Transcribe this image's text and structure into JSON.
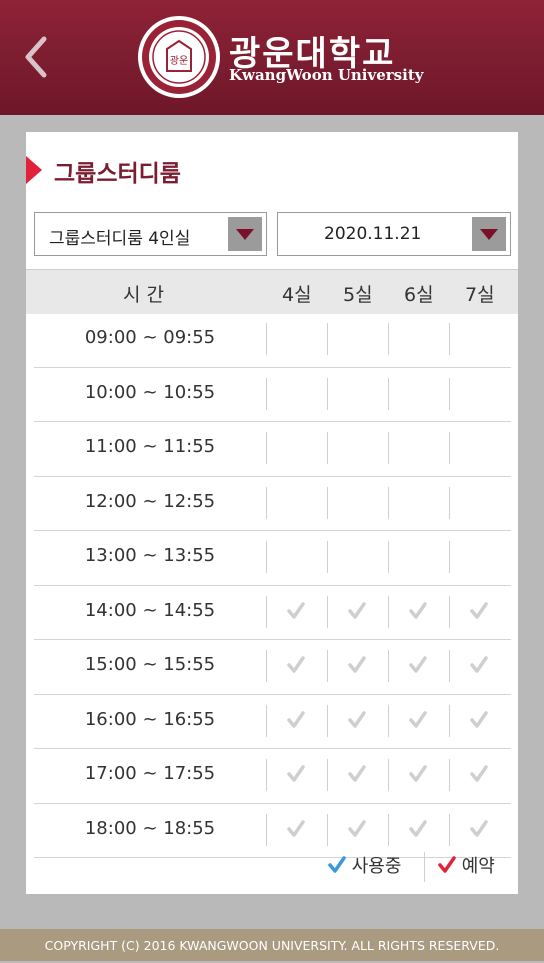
{
  "header": {
    "brand_korean": "광운대학교",
    "brand_english": "KwangWoon University",
    "logo_inner_text": "광운",
    "icons": {
      "back": "chevron-left-icon",
      "logo": "university-seal-icon"
    }
  },
  "page": {
    "title": "그룹스터디룸"
  },
  "filters": {
    "room_type": "그룹스터디룸 4인실",
    "date": "2020.11.21"
  },
  "table": {
    "time_header": "시 간",
    "room_headers": [
      "4실",
      "5실",
      "6실",
      "7실"
    ],
    "rows": [
      {
        "time": "09:00 ~ 09:55",
        "status": [
          "",
          "",
          "",
          ""
        ]
      },
      {
        "time": "10:00 ~ 10:55",
        "status": [
          "",
          "",
          "",
          ""
        ]
      },
      {
        "time": "11:00 ~ 11:55",
        "status": [
          "",
          "",
          "",
          ""
        ]
      },
      {
        "time": "12:00 ~ 12:55",
        "status": [
          "",
          "",
          "",
          ""
        ]
      },
      {
        "time": "13:00 ~ 13:55",
        "status": [
          "",
          "",
          "",
          ""
        ]
      },
      {
        "time": "14:00 ~ 14:55",
        "status": [
          "disabled",
          "disabled",
          "disabled",
          "disabled"
        ]
      },
      {
        "time": "15:00 ~ 15:55",
        "status": [
          "disabled",
          "disabled",
          "disabled",
          "disabled"
        ]
      },
      {
        "time": "16:00 ~ 16:55",
        "status": [
          "disabled",
          "disabled",
          "disabled",
          "disabled"
        ]
      },
      {
        "time": "17:00 ~ 17:55",
        "status": [
          "disabled",
          "disabled",
          "disabled",
          "disabled"
        ]
      },
      {
        "time": "18:00 ~ 18:55",
        "status": [
          "disabled",
          "disabled",
          "disabled",
          "disabled"
        ]
      }
    ]
  },
  "legend": {
    "in_use_label": "사용중",
    "reserved_label": "예약"
  },
  "colors": {
    "header_maroon": "#7a1c2f",
    "title_red": "#7b1c30",
    "marker_red": "#e0233a",
    "in_use_blue": "#3a9ad9",
    "reserved_red": "#e0233a",
    "disabled_check": "#cfcfcf"
  },
  "footer": {
    "copyright": "COPYRIGHT (C) 2016 KWANGWOON UNIVERSITY. ALL RIGHTS RESERVED."
  }
}
